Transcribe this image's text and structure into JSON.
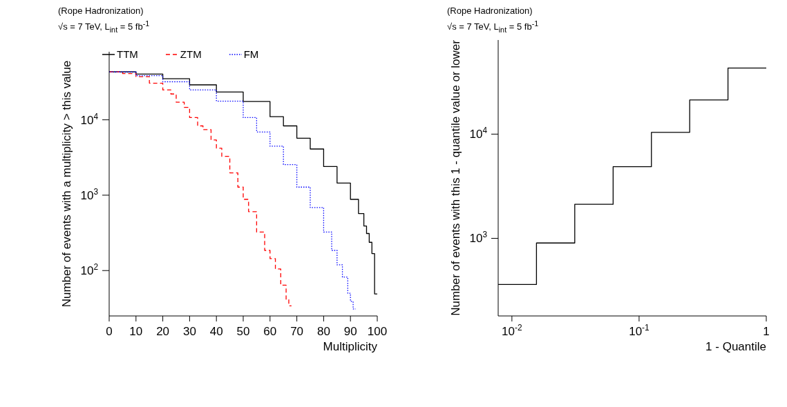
{
  "chart_data": [
    {
      "type": "step",
      "title": "(Rope Hadronization)",
      "subtitle": "√s = 7 TeV, L$_{int}$ = 5 fb$^{-1}$",
      "xlabel": "Multiplicity",
      "ylabel": "Number of events with a multiplicity > this value",
      "log": "y",
      "legend": "top",
      "xlim": [
        0,
        100
      ],
      "xticks": [
        0,
        10,
        20,
        30,
        40,
        50,
        60,
        70,
        80,
        90,
        100
      ],
      "ylim": [
        25,
        80000
      ],
      "yticks": [
        {
          "value": 100,
          "label": "10$^{2}$"
        },
        {
          "value": 1000,
          "label": "10$^{3}$"
        },
        {
          "value": 10000,
          "label": "10$^{4}$"
        }
      ],
      "series": [
        {
          "name": "TTM",
          "color": "#000000",
          "line_style": "solid",
          "x": [
            0,
            10,
            20,
            30,
            40,
            50,
            60,
            65,
            70,
            75,
            80,
            85,
            90,
            93,
            95,
            96,
            97,
            98,
            99,
            100
          ],
          "values": [
            43200,
            40500,
            35100,
            29100,
            23400,
            17500,
            11000,
            8300,
            5700,
            4100,
            2400,
            1450,
            880,
            570,
            390,
            310,
            237,
            168,
            49,
            49
          ]
        },
        {
          "name": "ZTM",
          "color": "#ff0000",
          "line_style": "dashed",
          "x": [
            0,
            5,
            10,
            15,
            20,
            23,
            25,
            28,
            30,
            33,
            35,
            38,
            40,
            42,
            45,
            48,
            50,
            52,
            55,
            58,
            60,
            62,
            64,
            66,
            67,
            68
          ],
          "values": [
            43200,
            41000,
            37400,
            30600,
            24900,
            22000,
            17100,
            14600,
            10700,
            8300,
            7400,
            5400,
            4200,
            3270,
            1980,
            1280,
            880,
            605,
            324,
            185,
            144,
            105,
            64,
            41,
            34,
            34
          ]
        },
        {
          "name": "FM",
          "color": "#0000ff",
          "line_style": "dotted",
          "x": [
            0,
            10,
            20,
            30,
            40,
            50,
            55,
            60,
            65,
            70,
            75,
            80,
            83,
            85,
            87,
            89,
            90,
            91,
            92
          ],
          "values": [
            43200,
            38500,
            32000,
            24900,
            17700,
            10700,
            6900,
            4470,
            2550,
            1280,
            686,
            324,
            185,
            119,
            82,
            50,
            39,
            31,
            31
          ]
        }
      ]
    },
    {
      "type": "step",
      "title": "(Rope Hadronization)",
      "subtitle": "√s = 7 TeV, L$_{int}$ = 5 fb$^{-1}$",
      "xlabel": "1 - Quantile",
      "ylabel": "Number of events with this 1 - quantile value or lower",
      "log": "xy",
      "xlim": [
        0.0078,
        1
      ],
      "xticks": [
        {
          "value": 0.01,
          "label": "10$^{-2}$"
        },
        {
          "value": 0.1,
          "label": "10$^{-1}$"
        },
        1
      ],
      "ylim": [
        180,
        80000
      ],
      "yticks": [
        {
          "value": 1000,
          "label": "10$^{3}$"
        },
        {
          "value": 10000,
          "label": "10$^{4}$"
        }
      ],
      "series": [
        {
          "color": "#000000",
          "line_style": "solid",
          "x": [
            0.0078,
            0.0156,
            0.0312,
            0.0625,
            0.125,
            0.25,
            0.5,
            1
          ],
          "values": [
            361,
            902,
            2120,
            4870,
            10400,
            21300,
            43100,
            43100
          ]
        }
      ]
    }
  ]
}
